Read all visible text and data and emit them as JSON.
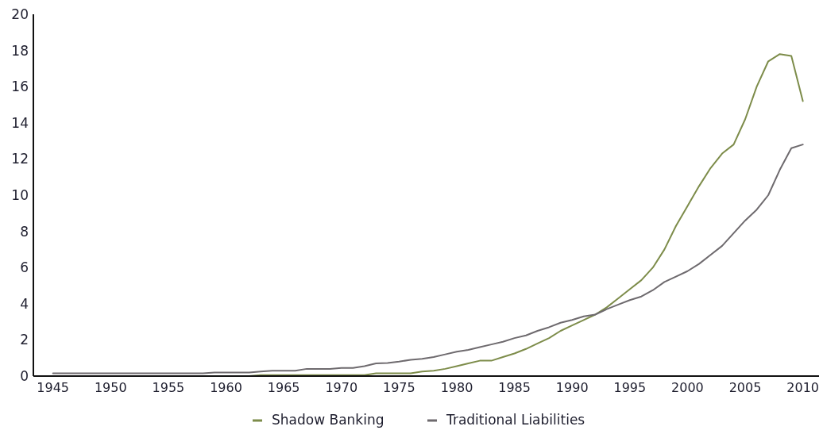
{
  "chart_data": {
    "type": "line",
    "x": [
      1945,
      1946,
      1947,
      1948,
      1949,
      1950,
      1951,
      1952,
      1953,
      1954,
      1955,
      1956,
      1957,
      1958,
      1959,
      1960,
      1961,
      1962,
      1963,
      1964,
      1965,
      1966,
      1967,
      1968,
      1969,
      1970,
      1971,
      1972,
      1973,
      1974,
      1975,
      1976,
      1977,
      1978,
      1979,
      1980,
      1981,
      1982,
      1983,
      1984,
      1985,
      1986,
      1987,
      1988,
      1989,
      1990,
      1991,
      1992,
      1993,
      1994,
      1995,
      1996,
      1997,
      1998,
      1999,
      2000,
      2001,
      2002,
      2003,
      2004,
      2005,
      2006,
      2007,
      2008,
      2009,
      2010
    ],
    "series": [
      {
        "name": "Shadow Banking",
        "color": "#7d8c4a",
        "values": [
          0,
          0,
          0,
          0,
          0,
          0,
          0,
          0,
          0,
          0,
          0,
          0,
          0,
          0,
          0,
          0,
          0,
          0,
          0.05,
          0.05,
          0.05,
          0.05,
          0.05,
          0.05,
          0.05,
          0.05,
          0.05,
          0.05,
          0.15,
          0.15,
          0.15,
          0.15,
          0.25,
          0.3,
          0.4,
          0.55,
          0.7,
          0.85,
          0.85,
          1.05,
          1.25,
          1.5,
          1.8,
          2.1,
          2.5,
          2.8,
          3.1,
          3.4,
          3.8,
          4.3,
          4.8,
          5.3,
          6.0,
          7.0,
          8.3,
          9.4,
          10.5,
          11.5,
          12.3,
          12.8,
          14.2,
          16.0,
          17.4,
          17.8,
          17.7,
          15.2
        ]
      },
      {
        "name": "Traditional Liabilities",
        "color": "#6e6a6e",
        "values": [
          0.15,
          0.15,
          0.15,
          0.15,
          0.15,
          0.15,
          0.15,
          0.15,
          0.15,
          0.15,
          0.15,
          0.15,
          0.15,
          0.15,
          0.2,
          0.2,
          0.2,
          0.2,
          0.25,
          0.3,
          0.3,
          0.3,
          0.4,
          0.4,
          0.4,
          0.45,
          0.45,
          0.55,
          0.7,
          0.72,
          0.8,
          0.9,
          0.95,
          1.05,
          1.2,
          1.35,
          1.45,
          1.6,
          1.75,
          1.9,
          2.1,
          2.25,
          2.5,
          2.7,
          2.95,
          3.1,
          3.3,
          3.4,
          3.7,
          3.95,
          4.2,
          4.4,
          4.75,
          5.2,
          5.5,
          5.8,
          6.2,
          6.7,
          7.2,
          7.9,
          8.6,
          9.2,
          10.0,
          11.4,
          12.6,
          12.8
        ]
      }
    ],
    "xlim": [
      1943.3,
      2011.4
    ],
    "xticks": [
      1945,
      1950,
      1955,
      1960,
      1965,
      1970,
      1975,
      1980,
      1985,
      1990,
      1995,
      2000,
      2005,
      2010
    ],
    "ylim": [
      0,
      20
    ],
    "yticks": [
      0,
      2,
      4,
      6,
      8,
      10,
      12,
      14,
      16,
      18,
      20
    ],
    "grid": false,
    "legend": "bottom",
    "line_style": "solid",
    "marker": "none"
  }
}
